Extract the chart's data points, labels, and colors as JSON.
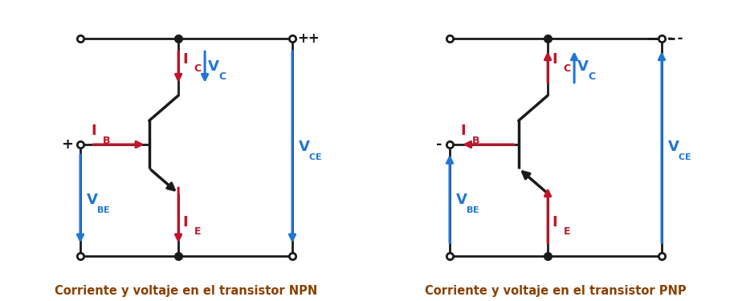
{
  "bg_color": "#ffffff",
  "red": "#c0152a",
  "blue": "#2176d4",
  "black": "#1a1a1a",
  "title_color": "#8B4000",
  "title_npn": "Corriente y voltaje en el transistor NPN",
  "title_pnp": "Corriente y voltaje en el transistor PNP",
  "title_fontsize": 10.5,
  "lw_circuit": 2.0,
  "lw_transistor": 2.5,
  "lw_arrow": 2.2,
  "arrow_ms": 13,
  "dot_filled": 7,
  "dot_open": 6,
  "label_size": 13,
  "sub_size": 9,
  "pp_label": "++",
  "mm_label": "- -"
}
